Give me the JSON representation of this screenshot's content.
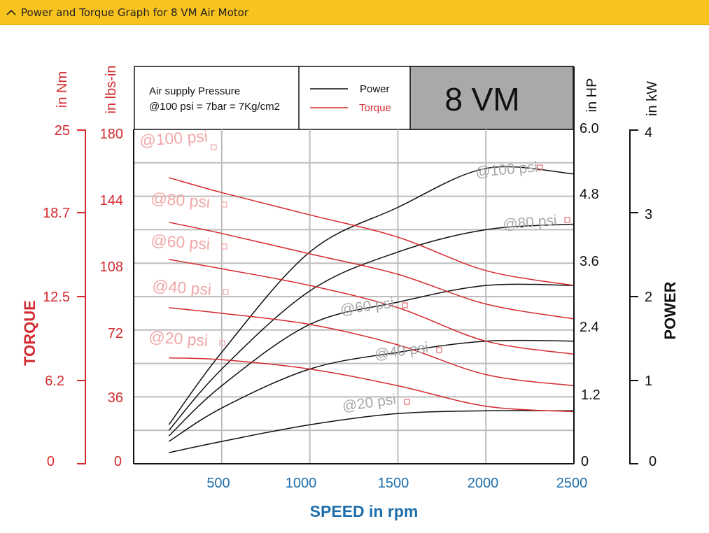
{
  "header": {
    "title": "Power and Torque Graph for 8 VM Air Motor",
    "icon": "chevron-up-icon"
  },
  "colors": {
    "torque": "#d42a2f",
    "power": "#111111",
    "speed": "#1f6fad",
    "header": "#f8c31e",
    "grid": "#bdbdbd",
    "model_box": "#a9a9a9"
  },
  "chart_data": {
    "type": "line",
    "legend_box": {
      "note_line1": "Air supply Pressure",
      "note_line2": "@100 psi = 7bar = 7Kg/cm2",
      "power_label": "Power",
      "torque_label": "Torque",
      "model": "8 VM"
    },
    "xlabel": "SPEED in rpm",
    "xlim": [
      0,
      2500
    ],
    "x_ticks": [
      "500",
      "1000",
      "1500",
      "2000",
      "2500"
    ],
    "left_axes": {
      "torque_title": "TORQUE",
      "nm_unit": "in Nm",
      "nm_ticks": [
        "25",
        "18.7",
        "12.5",
        "6.2",
        "0"
      ],
      "lbsin_unit": "in lbs-in",
      "lbsin_ticks": [
        "180",
        "144",
        "108",
        "72",
        "36",
        "0"
      ]
    },
    "right_axes": {
      "power_title": "POWER",
      "hp_unit": "in HP",
      "hp_ticks": [
        "6.0",
        "4.8",
        "3.6",
        "2.4",
        "1.2",
        "0"
      ],
      "kw_unit": "in kW",
      "kw_ticks": [
        "4",
        "3",
        "2",
        "1",
        "0"
      ]
    },
    "ylim_lbsin": [
      0,
      180
    ],
    "ylim_hp": [
      0,
      6.0
    ],
    "grid": true,
    "torque_series": [
      {
        "label": "@100 psi",
        "x": [
          200,
          500,
          1000,
          1500,
          2000,
          2500
        ],
        "y": [
          154,
          146,
          134,
          122,
          104,
          96
        ]
      },
      {
        "label": "@80 psi",
        "x": [
          200,
          500,
          1000,
          1500,
          2000,
          2500
        ],
        "y": [
          130,
          124,
          113,
          102,
          86,
          78
        ]
      },
      {
        "label": "@60 psi",
        "x": [
          200,
          500,
          1000,
          1500,
          2000,
          2500
        ],
        "y": [
          110,
          105,
          96,
          84,
          66,
          59
        ]
      },
      {
        "label": "@40 psi",
        "x": [
          200,
          500,
          1000,
          1500,
          2000,
          2500
        ],
        "y": [
          84,
          81,
          75,
          64,
          48,
          42
        ]
      },
      {
        "label": "@20 psi",
        "x": [
          200,
          500,
          1000,
          1500,
          2000,
          2500
        ],
        "y": [
          57,
          56,
          51,
          42,
          31,
          28
        ]
      }
    ],
    "power_series": [
      {
        "label": "@100 psi",
        "x": [
          200,
          500,
          1000,
          1500,
          2000,
          2500
        ],
        "y": [
          0.7,
          2.0,
          3.8,
          4.6,
          5.3,
          5.2
        ]
      },
      {
        "label": "@80 psi",
        "x": [
          200,
          500,
          1000,
          1500,
          2000,
          2500
        ],
        "y": [
          0.6,
          1.7,
          3.1,
          3.8,
          4.2,
          4.3
        ]
      },
      {
        "label": "@60 psi",
        "x": [
          200,
          500,
          1000,
          1500,
          2000,
          2500
        ],
        "y": [
          0.5,
          1.4,
          2.5,
          2.9,
          3.2,
          3.2
        ]
      },
      {
        "label": "@40 psi",
        "x": [
          200,
          500,
          1000,
          1500,
          2000,
          2500
        ],
        "y": [
          0.4,
          1.0,
          1.7,
          2.0,
          2.2,
          2.2
        ]
      },
      {
        "label": "@20 psi",
        "x": [
          200,
          500,
          1000,
          1500,
          2000,
          2500
        ],
        "y": [
          0.2,
          0.4,
          0.7,
          0.9,
          0.95,
          0.95
        ]
      }
    ]
  }
}
